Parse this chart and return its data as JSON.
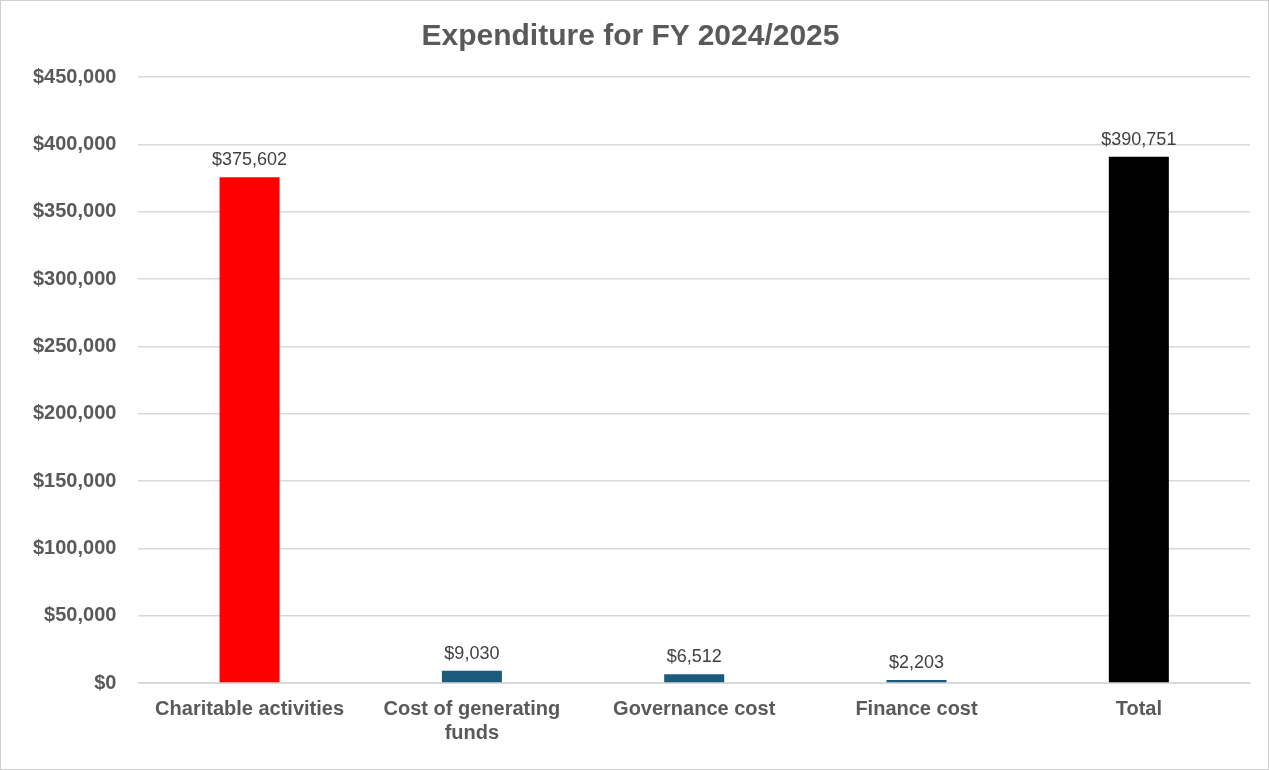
{
  "chart_data": {
    "type": "bar",
    "title": "Expenditure for FY 2024/2025",
    "categories": [
      "Charitable activities",
      "Cost of generating funds",
      "Governance cost",
      "Finance cost",
      "Total"
    ],
    "values": [
      375602,
      9030,
      6512,
      2203,
      390751
    ],
    "colors": [
      "#ff0000",
      "#1b5a7a",
      "#1b5a7a",
      "#1b5a7a",
      "#000000"
    ],
    "value_labels": [
      "$375,602",
      "$9,030",
      "$6,512",
      "$2,203",
      "$390,751"
    ],
    "ylim": [
      0,
      450000
    ],
    "yticks": [
      {
        "value": 0,
        "label": "$0"
      },
      {
        "value": 50000,
        "label": "$50,000"
      },
      {
        "value": 100000,
        "label": "$100,000"
      },
      {
        "value": 150000,
        "label": "$150,000"
      },
      {
        "value": 200000,
        "label": "$200,000"
      },
      {
        "value": 250000,
        "label": "$250,000"
      },
      {
        "value": 300000,
        "label": "$300,000"
      },
      {
        "value": 350000,
        "label": "$350,000"
      },
      {
        "value": 400000,
        "label": "$400,000"
      },
      {
        "value": 450000,
        "label": "$450,000"
      }
    ],
    "grid": "y",
    "legend": false
  }
}
